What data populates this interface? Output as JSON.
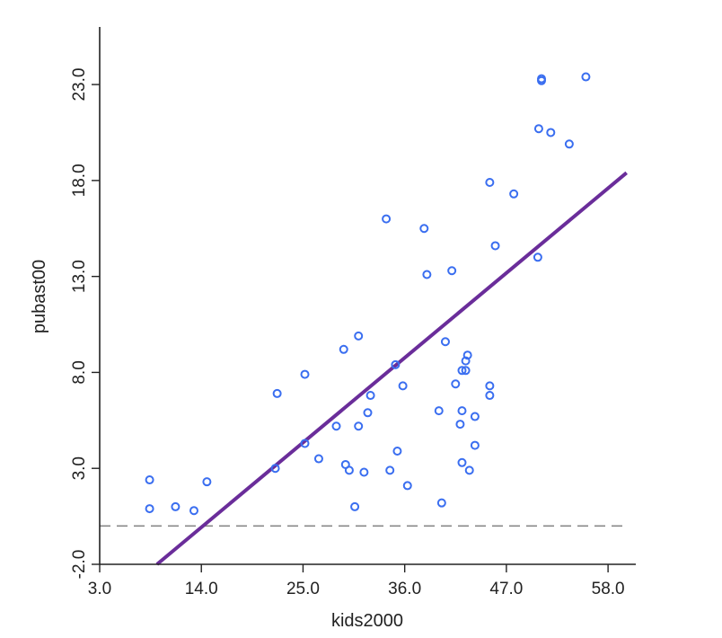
{
  "chart_data": {
    "type": "scatter",
    "title": "",
    "xlabel": "kids2000",
    "ylabel": "pubast00",
    "xlim": [
      3.0,
      61.0
    ],
    "ylim": [
      -2.0,
      26.0
    ],
    "x_ticks": [
      "3.0",
      "14.0",
      "25.0",
      "36.0",
      "47.0",
      "58.0"
    ],
    "y_ticks": [
      "-2.0",
      "3.0",
      "8.0",
      "13.0",
      "18.0",
      "23.0"
    ],
    "grid": false,
    "legend": "none",
    "colors": {
      "points": "#3a6ef0",
      "fit_line": "#6a2d9a",
      "reference_line": "#888888"
    },
    "reference_line": {
      "y": 0.0,
      "style": "dashed"
    },
    "fit_line": {
      "x": [
        9.2,
        60.0
      ],
      "y": [
        -2.0,
        18.4
      ]
    },
    "points": [
      {
        "x": 8.4,
        "y": 2.4
      },
      {
        "x": 8.4,
        "y": 0.9
      },
      {
        "x": 11.2,
        "y": 1.0
      },
      {
        "x": 13.2,
        "y": 0.8
      },
      {
        "x": 14.6,
        "y": 2.3
      },
      {
        "x": 22.2,
        "y": 6.9
      },
      {
        "x": 22.0,
        "y": 3.0
      },
      {
        "x": 25.2,
        "y": 7.9
      },
      {
        "x": 25.2,
        "y": 4.3
      },
      {
        "x": 26.7,
        "y": 3.5
      },
      {
        "x": 28.6,
        "y": 5.2
      },
      {
        "x": 29.4,
        "y": 9.2
      },
      {
        "x": 29.6,
        "y": 3.2
      },
      {
        "x": 30.0,
        "y": 2.9
      },
      {
        "x": 30.6,
        "y": 1.0
      },
      {
        "x": 31.0,
        "y": 9.9
      },
      {
        "x": 31.0,
        "y": 5.2
      },
      {
        "x": 31.6,
        "y": 2.8
      },
      {
        "x": 32.0,
        "y": 5.9
      },
      {
        "x": 32.3,
        "y": 6.8
      },
      {
        "x": 34.0,
        "y": 16.0
      },
      {
        "x": 34.4,
        "y": 2.9
      },
      {
        "x": 35.0,
        "y": 8.4
      },
      {
        "x": 35.2,
        "y": 3.9
      },
      {
        "x": 35.8,
        "y": 7.3
      },
      {
        "x": 36.3,
        "y": 2.1
      },
      {
        "x": 38.1,
        "y": 15.5
      },
      {
        "x": 38.4,
        "y": 13.1
      },
      {
        "x": 39.7,
        "y": 6.0
      },
      {
        "x": 40.0,
        "y": 1.2
      },
      {
        "x": 40.4,
        "y": 9.6
      },
      {
        "x": 41.1,
        "y": 13.3
      },
      {
        "x": 41.5,
        "y": 7.4
      },
      {
        "x": 42.0,
        "y": 5.3
      },
      {
        "x": 42.2,
        "y": 8.1
      },
      {
        "x": 42.2,
        "y": 6.0
      },
      {
        "x": 42.2,
        "y": 3.3
      },
      {
        "x": 42.6,
        "y": 8.6
      },
      {
        "x": 42.6,
        "y": 8.1
      },
      {
        "x": 42.8,
        "y": 8.9
      },
      {
        "x": 43.0,
        "y": 2.9
      },
      {
        "x": 43.6,
        "y": 5.7
      },
      {
        "x": 43.6,
        "y": 4.2
      },
      {
        "x": 45.2,
        "y": 17.9
      },
      {
        "x": 45.2,
        "y": 7.3
      },
      {
        "x": 45.2,
        "y": 6.8
      },
      {
        "x": 45.8,
        "y": 14.6
      },
      {
        "x": 47.8,
        "y": 17.3
      },
      {
        "x": 50.4,
        "y": 14.0
      },
      {
        "x": 50.5,
        "y": 20.7
      },
      {
        "x": 50.8,
        "y": 23.3
      },
      {
        "x": 50.8,
        "y": 23.2
      },
      {
        "x": 51.8,
        "y": 20.5
      },
      {
        "x": 53.8,
        "y": 19.9
      },
      {
        "x": 55.6,
        "y": 23.4
      }
    ]
  }
}
